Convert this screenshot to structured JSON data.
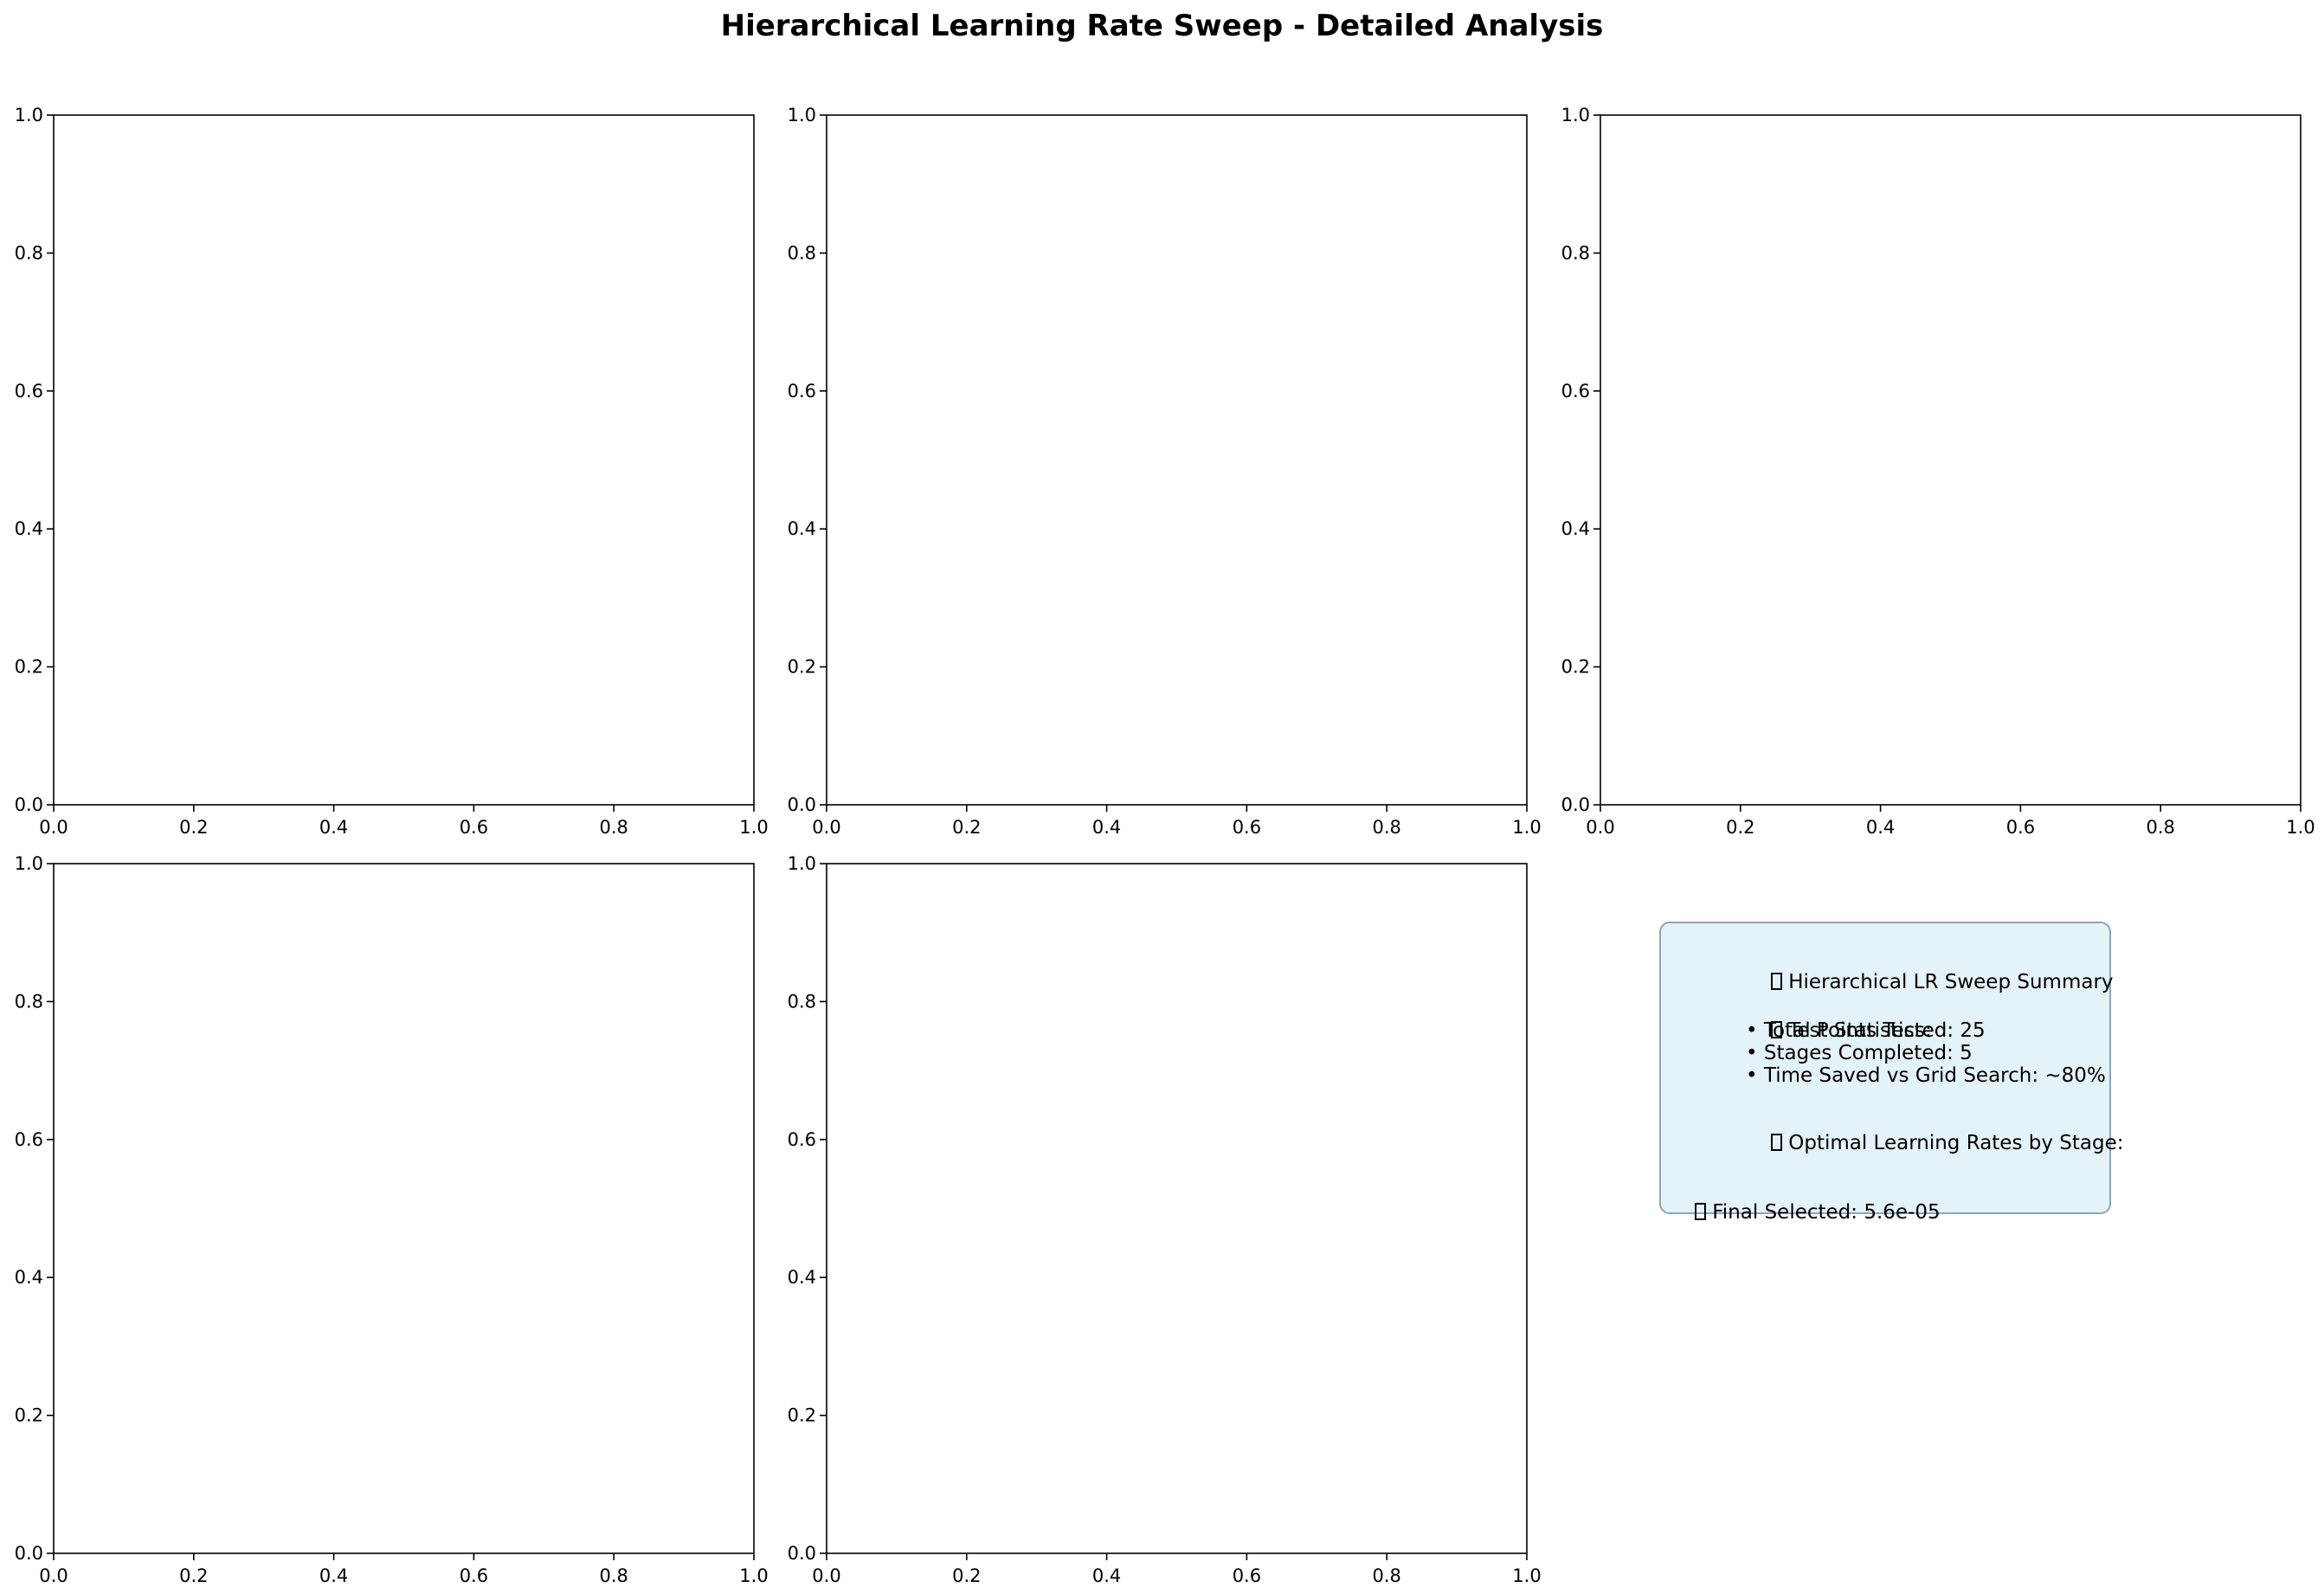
{
  "figure": {
    "title": "Hierarchical Learning Rate Sweep - Detailed Analysis"
  },
  "chart_data": [
    {
      "type": "line",
      "subplot": "row 1, col 1",
      "title": "",
      "xlabel": "",
      "ylabel": "",
      "xlim": [
        0,
        1
      ],
      "ylim": [
        0,
        1
      ],
      "series": [],
      "xticks": [
        "0.0",
        "0.2",
        "0.4",
        "0.6",
        "0.8",
        "1.0"
      ],
      "yticks": [
        "0.0",
        "0.2",
        "0.4",
        "0.6",
        "0.8",
        "1.0"
      ]
    },
    {
      "type": "line",
      "subplot": "row 1, col 2",
      "title": "",
      "xlabel": "",
      "ylabel": "",
      "xlim": [
        0,
        1
      ],
      "ylim": [
        0,
        1
      ],
      "series": [],
      "xticks": [
        "0.0",
        "0.2",
        "0.4",
        "0.6",
        "0.8",
        "1.0"
      ],
      "yticks": [
        "0.0",
        "0.2",
        "0.4",
        "0.6",
        "0.8",
        "1.0"
      ]
    },
    {
      "type": "line",
      "subplot": "row 1, col 3",
      "title": "",
      "xlabel": "",
      "ylabel": "",
      "xlim": [
        0,
        1
      ],
      "ylim": [
        0,
        1
      ],
      "series": [],
      "xticks": [
        "0.0",
        "0.2",
        "0.4",
        "0.6",
        "0.8",
        "1.0"
      ],
      "yticks": [
        "0.0",
        "0.2",
        "0.4",
        "0.6",
        "0.8",
        "1.0"
      ]
    },
    {
      "type": "line",
      "subplot": "row 2, col 1",
      "title": "",
      "xlabel": "",
      "ylabel": "",
      "xlim": [
        0,
        1
      ],
      "ylim": [
        0,
        1
      ],
      "series": [],
      "xticks": [
        "0.0",
        "0.2",
        "0.4",
        "0.6",
        "0.8",
        "1.0"
      ],
      "yticks": [
        "0.0",
        "0.2",
        "0.4",
        "0.6",
        "0.8",
        "1.0"
      ]
    },
    {
      "type": "line",
      "subplot": "row 2, col 2",
      "title": "",
      "xlabel": "",
      "ylabel": "",
      "xlim": [
        0,
        1
      ],
      "ylim": [
        0,
        1
      ],
      "series": [],
      "xticks": [
        "0.0",
        "0.2",
        "0.4",
        "0.6",
        "0.8",
        "1.0"
      ],
      "yticks": [
        "0.0",
        "0.2",
        "0.4",
        "0.6",
        "0.8",
        "1.0"
      ]
    }
  ],
  "summary": {
    "heading": "Hierarchical LR Sweep Summary",
    "stats_heading": "Test Statistics:",
    "total_points": "• Total Points Tested: 25",
    "stages_completed": "• Stages Completed: 5",
    "time_saved": "• Time Saved vs Grid Search: ~80%",
    "optimal_heading": "Optimal Learning Rates by Stage:",
    "final_selected": "Final Selected: 5.6e-05",
    "background_color": "#e4f3f7",
    "border_color": "#8fa6b3",
    "icon": "missing-glyph-box-icon"
  }
}
